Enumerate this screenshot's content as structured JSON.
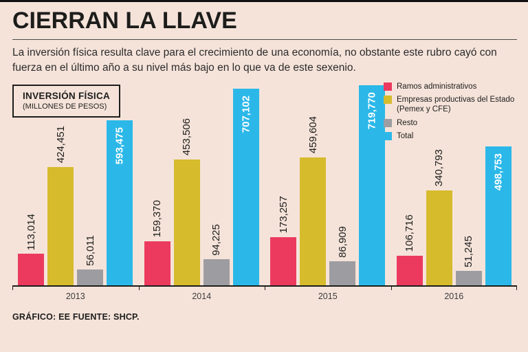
{
  "page": {
    "title": "CIERRAN LA LLAVE",
    "subtitle": "La inversión física resulta clave para el crecimiento de una economía, no obstante este rubro cayó con fuerza en el último año a su nivel más bajo en lo que va de este sexenio.",
    "footer": "GRÁFICO: EE  FUENTE: SHCP."
  },
  "info_box": {
    "title": "INVERSIÓN FÍSICA",
    "subtitle": "(MILLONES DE PESOS)"
  },
  "colors": {
    "background": "#f5e3da",
    "ramos": "#ec3a5e",
    "empresas": "#d6bb2d",
    "resto": "#9d9da1",
    "total": "#2bb8e8",
    "text": "#1d1d1b"
  },
  "chart_data": {
    "type": "bar",
    "title": "INVERSIÓN FÍSICA",
    "units": "(MILLONES DE PESOS)",
    "categories": [
      "2013",
      "2014",
      "2015",
      "2016"
    ],
    "series": [
      {
        "name": "Ramos administrativos",
        "color": "#ec3a5e",
        "values": [
          113014,
          159370,
          173257,
          106716
        ],
        "labels": [
          "113,014",
          "159,370",
          "173,257",
          "106,716"
        ],
        "label_inside": false
      },
      {
        "name": "Empresas productivas del Estado (Pemex y CFE)",
        "color": "#d6bb2d",
        "values": [
          424451,
          453506,
          459604,
          340793
        ],
        "labels": [
          "424,451",
          "453,506",
          "459,604",
          "340,793"
        ],
        "label_inside": false
      },
      {
        "name": "Resto",
        "color": "#9d9da1",
        "values": [
          56011,
          94225,
          86909,
          51245
        ],
        "labels": [
          "56,011",
          "94,225",
          "86,909",
          "51,245"
        ],
        "label_inside": false
      },
      {
        "name": "Total",
        "color": "#2bb8e8",
        "values": [
          593475,
          707102,
          719770,
          498753
        ],
        "labels": [
          "593,475",
          "707,102",
          "719,770",
          "498,753"
        ],
        "label_inside": true
      }
    ],
    "ylim": [
      0,
      730000
    ],
    "legend_position": "top-right",
    "grid": false
  }
}
